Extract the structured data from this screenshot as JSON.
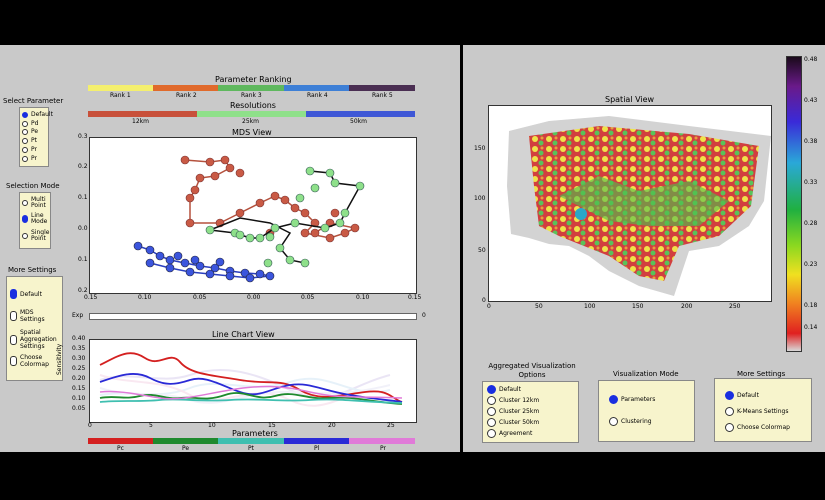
{
  "left": {
    "parameter_ranking": {
      "title": "Parameter Ranking",
      "items": [
        {
          "label": "Rank 1",
          "color": "#f4ef6e"
        },
        {
          "label": "Rank 2",
          "color": "#e06a2c"
        },
        {
          "label": "Rank 3",
          "color": "#5fb85e"
        },
        {
          "label": "Rank 4",
          "color": "#3d7fd6"
        },
        {
          "label": "Rank 5",
          "color": "#4a2e52"
        }
      ]
    },
    "resolutions": {
      "title": "Resolutions",
      "items": [
        {
          "label": "12km",
          "color": "#c8503a"
        },
        {
          "label": "25km",
          "color": "#8fe08a"
        },
        {
          "label": "50km",
          "color": "#3e57d6"
        }
      ]
    },
    "select_parameter": {
      "title": "Select Parameter",
      "options": [
        "Default",
        "Pd",
        "Pe",
        "Pt",
        "Pr",
        "Pr"
      ],
      "selected": 0
    },
    "selection_mode": {
      "title": "Selection Mode",
      "options": [
        "Multi Point",
        "Line Mode",
        "Single Point"
      ],
      "selected": 1
    },
    "more_settings": {
      "title": "More Settings",
      "options": [
        "Default",
        "MDS Settings",
        "Spatial Aggregation Settings",
        "Choose Colormap"
      ],
      "selected": 0
    },
    "mds": {
      "title": "MDS View",
      "y_ticks": [
        "0.3",
        "0.2",
        "0.1",
        "0.0",
        "0.1",
        "0.2"
      ],
      "x_ticks": [
        "0.15",
        "0.10",
        "0.05",
        "0.00",
        "0.05",
        "0.10",
        "0.15"
      ]
    },
    "slider": {
      "label": "Exp",
      "value": "0"
    },
    "line_chart": {
      "title": "Line Chart View",
      "ylabel": "Sensitivity",
      "y_ticks": [
        "0.40",
        "0.35",
        "0.30",
        "0.25",
        "0.20",
        "0.15",
        "0.10",
        "0.05"
      ],
      "x_ticks": [
        "0",
        "5",
        "10",
        "15",
        "20",
        "25"
      ]
    },
    "parameters": {
      "title": "Parameters",
      "items": [
        {
          "label": "Pc",
          "color": "#d42020"
        },
        {
          "label": "Pe",
          "color": "#1f8a2e"
        },
        {
          "label": "Pt",
          "color": "#3fbfb0"
        },
        {
          "label": "Pl",
          "color": "#2a2ad6"
        },
        {
          "label": "Pr",
          "color": "#e07ad8"
        }
      ]
    }
  },
  "right": {
    "spatial": {
      "title": "Spatial View",
      "y_ticks": [
        "150",
        "100",
        "50",
        "0"
      ],
      "x_ticks": [
        "0",
        "50",
        "100",
        "150",
        "200",
        "250"
      ]
    },
    "colorbar": {
      "ticks": [
        "0.48",
        "0.43",
        "0.38",
        "0.33",
        "0.28",
        "0.23",
        "0.18",
        "0.14"
      ]
    },
    "aggregated": {
      "title": "Aggregated Visualization Options",
      "options": [
        "Default",
        "Cluster 12km",
        "Cluster 25km",
        "Cluster 50km",
        "Agreement"
      ],
      "selected": 0
    },
    "vis_mode": {
      "title": "Visualization Mode",
      "options": [
        "Parameters",
        "Clustering"
      ],
      "selected": 0
    },
    "more_settings": {
      "title": "More Settings",
      "options": [
        "Default",
        "K-Means Settings",
        "Choose Colormap"
      ],
      "selected": 0
    }
  }
}
